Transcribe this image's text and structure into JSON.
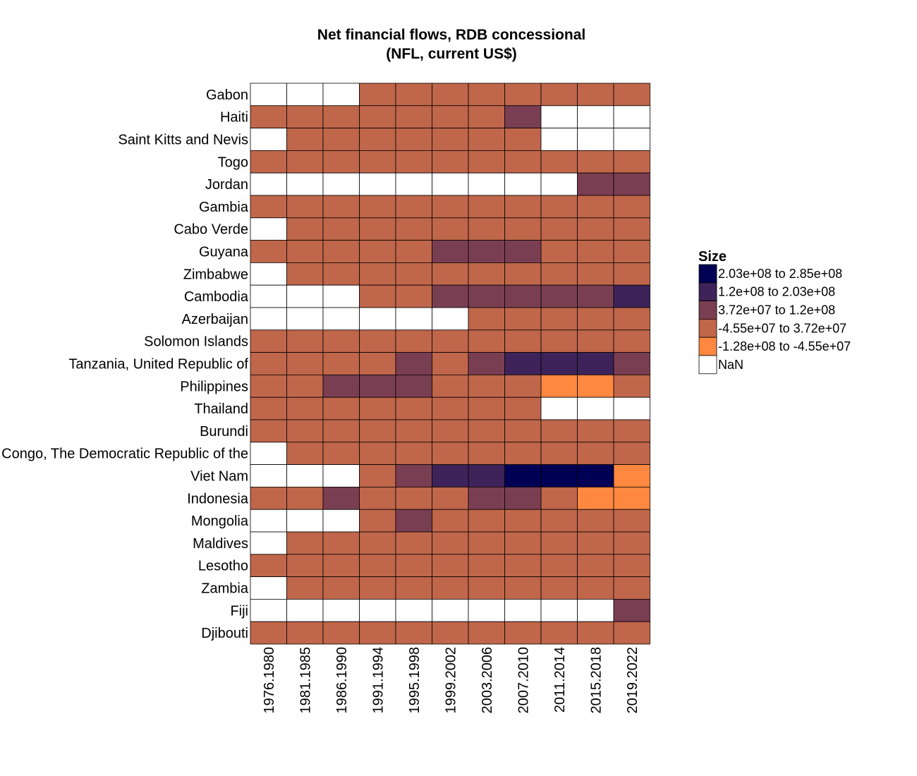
{
  "chart_data": {
    "type": "heatmap",
    "title": "Net financial flows, RDB concessional",
    "subtitle": "(NFL, current US$)",
    "columns": [
      "1976.1980",
      "1981.1985",
      "1986.1990",
      "1991.1994",
      "1995.1998",
      "1999.2002",
      "2003.2006",
      "2007.2010",
      "2011.2014",
      "2015.2018",
      "2019.2022"
    ],
    "rows": [
      "Gabon",
      "Haiti",
      "Saint Kitts and Nevis",
      "Togo",
      "Jordan",
      "Gambia",
      "Cabo Verde",
      "Guyana",
      "Zimbabwe",
      "Cambodia",
      "Azerbaijan",
      "Solomon Islands",
      "Tanzania, United Republic of",
      "Philippines",
      "Thailand",
      "Burundi",
      "Congo, The Democratic Republic of the",
      "Viet Nam",
      "Indonesia",
      "Mongolia",
      "Maldives",
      "Lesotho",
      "Zambia",
      "Fiji",
      "Djibouti"
    ],
    "bin_index_note_levels": [
      "nan",
      "-1.28e+08 to -4.55e+07",
      "-4.55e+07 to 3.72e+07",
      "3.72e+07 to 1.2e+08",
      "1.2e+08 to 2.03e+08",
      "2.03e+08 to 2.85e+08"
    ],
    "cells": [
      [
        0,
        0,
        0,
        2,
        2,
        2,
        2,
        2,
        2,
        2,
        2
      ],
      [
        2,
        2,
        2,
        2,
        2,
        2,
        2,
        3,
        0,
        0,
        0
      ],
      [
        0,
        2,
        2,
        2,
        2,
        2,
        2,
        2,
        0,
        0,
        0
      ],
      [
        2,
        2,
        2,
        2,
        2,
        2,
        2,
        2,
        2,
        2,
        2
      ],
      [
        0,
        0,
        0,
        0,
        0,
        0,
        0,
        0,
        0,
        3,
        3
      ],
      [
        2,
        2,
        2,
        2,
        2,
        2,
        2,
        2,
        2,
        2,
        2
      ],
      [
        0,
        2,
        2,
        2,
        2,
        2,
        2,
        2,
        2,
        2,
        2
      ],
      [
        2,
        2,
        2,
        2,
        2,
        3,
        3,
        3,
        2,
        2,
        2
      ],
      [
        0,
        2,
        2,
        2,
        2,
        2,
        2,
        2,
        2,
        2,
        2
      ],
      [
        0,
        0,
        0,
        2,
        2,
        3,
        3,
        3,
        3,
        3,
        4
      ],
      [
        0,
        0,
        0,
        0,
        0,
        0,
        2,
        2,
        2,
        2,
        2
      ],
      [
        2,
        2,
        2,
        2,
        2,
        2,
        2,
        2,
        2,
        2,
        2
      ],
      [
        2,
        2,
        2,
        2,
        3,
        2,
        3,
        4,
        4,
        4,
        3
      ],
      [
        2,
        2,
        3,
        3,
        3,
        2,
        2,
        2,
        1,
        1,
        2
      ],
      [
        2,
        2,
        2,
        2,
        2,
        2,
        2,
        2,
        0,
        0,
        0
      ],
      [
        2,
        2,
        2,
        2,
        2,
        2,
        2,
        2,
        2,
        2,
        2
      ],
      [
        0,
        2,
        2,
        2,
        2,
        2,
        2,
        2,
        2,
        2,
        2
      ],
      [
        0,
        0,
        0,
        2,
        3,
        4,
        4,
        5,
        5,
        5,
        1
      ],
      [
        2,
        2,
        3,
        2,
        2,
        2,
        3,
        3,
        2,
        1,
        1
      ],
      [
        0,
        0,
        0,
        2,
        3,
        2,
        2,
        2,
        2,
        2,
        2
      ],
      [
        0,
        2,
        2,
        2,
        2,
        2,
        2,
        2,
        2,
        2,
        2
      ],
      [
        2,
        2,
        2,
        2,
        2,
        2,
        2,
        2,
        2,
        2,
        2
      ],
      [
        0,
        2,
        2,
        2,
        2,
        2,
        2,
        2,
        2,
        2,
        2
      ],
      [
        0,
        0,
        0,
        0,
        0,
        0,
        0,
        0,
        0,
        0,
        3
      ],
      [
        2,
        2,
        2,
        2,
        2,
        2,
        2,
        2,
        2,
        2,
        2
      ]
    ],
    "legend": {
      "title": "Size",
      "items": [
        {
          "label": "2.03e+08 to 2.85e+08",
          "color": "#000055"
        },
        {
          "label": "1.2e+08 to 2.03e+08",
          "color": "#3d2359"
        },
        {
          "label": "3.72e+07 to 1.2e+08",
          "color": "#7a3e52"
        },
        {
          "label": "-4.55e+07 to 3.72e+07",
          "color": "#c0664a"
        },
        {
          "label": "-1.28e+08 to -4.55e+07",
          "color": "#ff8840"
        },
        {
          "label": "NaN",
          "color": "#ffffff"
        }
      ]
    },
    "bin_colors": [
      "#ffffff",
      "#ff8840",
      "#c0664a",
      "#7a3e52",
      "#3d2359",
      "#000055"
    ]
  }
}
